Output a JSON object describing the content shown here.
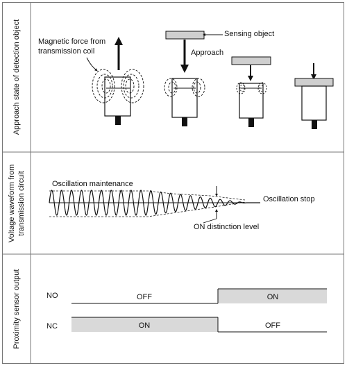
{
  "panels": {
    "approach": {
      "title": "Approach state of detection object",
      "magnetic_force_label": "Magnetic force from",
      "magnetic_force_label_2": "transmission coil",
      "sensing_object_label": "Sensing object",
      "approach_label": "Approach"
    },
    "waveform": {
      "title_line1": "Voltage waveform from",
      "title_line2": "transmission circuit",
      "oscillation_maintenance": "Oscillation maintenance",
      "oscillation_stop": "Oscillation stop",
      "on_distinction_level": "ON distinction level"
    },
    "output": {
      "title": "Proximity sensor output",
      "rows": [
        {
          "name": "NO",
          "first": "OFF",
          "second": "ON"
        },
        {
          "name": "NC",
          "first": "ON",
          "second": "OFF"
        }
      ]
    }
  },
  "colors": {
    "line": "#111111",
    "shaded": "#d9d9d9",
    "sensing_object": "#cfcfcf",
    "dashed_field": "#222222"
  }
}
